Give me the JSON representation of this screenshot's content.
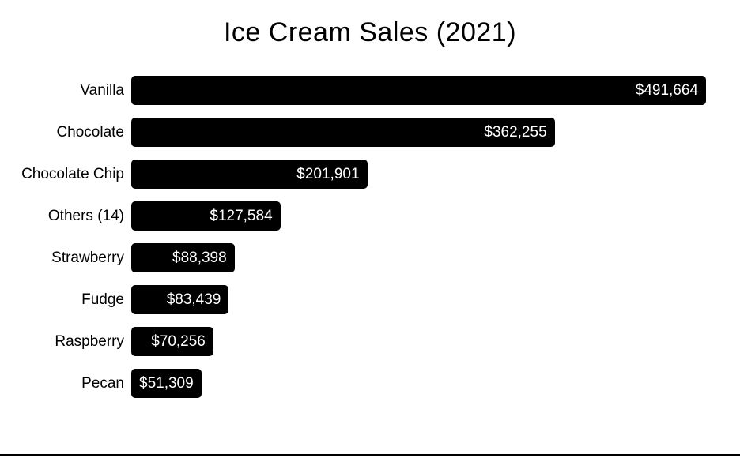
{
  "chart_data": {
    "type": "bar",
    "orientation": "horizontal",
    "title": "Ice Cream Sales (2021)",
    "categories": [
      "Vanilla",
      "Chocolate",
      "Chocolate Chip",
      "Others (14)",
      "Strawberry",
      "Fudge",
      "Raspberry",
      "Pecan"
    ],
    "values": [
      491664,
      362255,
      201901,
      127584,
      88398,
      83439,
      70256,
      51309
    ],
    "value_labels": [
      "$491,664",
      "$362,255",
      "$201,901",
      "$127,584",
      "$88,398",
      "$83,439",
      "$70,256",
      "$51,309"
    ],
    "xlabel": "",
    "ylabel": "",
    "xlim": [
      0,
      491664
    ],
    "grid": false,
    "legend": false,
    "sort": "descending",
    "colors": {
      "bar": "#000000",
      "bar_label": "#ffffff",
      "category_label": "#000000",
      "title": "#000000",
      "background": "#ffffff",
      "baseline": "#000000"
    }
  }
}
